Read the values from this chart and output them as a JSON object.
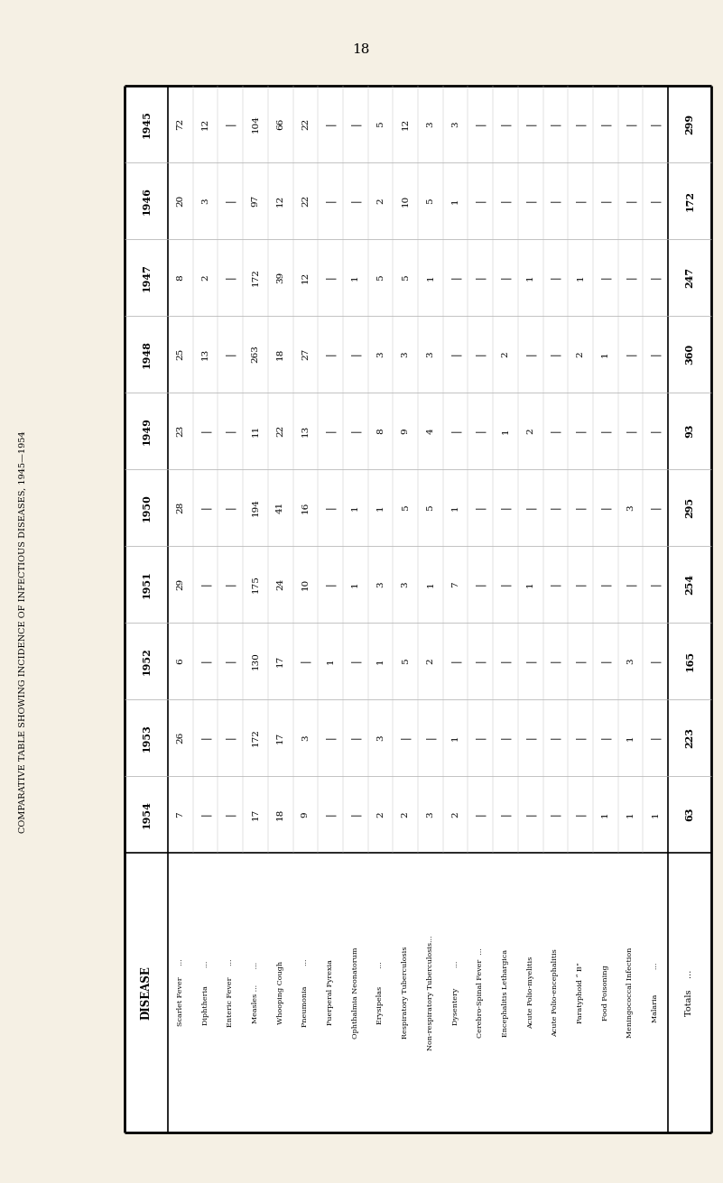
{
  "page_number": "18",
  "side_title": "COMPARATIVE TABLE SHOWING INCIDENCE OF INFECTIOUS DISEASES, 1945—1954",
  "bg_color": "#f5f0e4",
  "years_top_to_bottom": [
    "1945",
    "1946",
    "1947",
    "1948",
    "1949",
    "1950",
    "1951",
    "1952",
    "1953",
    "1954"
  ],
  "disease_names": [
    "Scarlet Fever     ...",
    "Diphtheria        ...",
    "Enteric Fever     ...",
    "Measles ...       ...",
    "Whooping Cough",
    "Pneumonia         ...",
    "Puerperal Pyrexia",
    "Ophthalmia Neonatorum",
    "Erysipelas        ...",
    "Respiratory Tuberculosis",
    "Non-respiratory Tuberculosis...",
    "Dysentery         ...",
    "Cerebro-Spinal Fever  ...",
    "Encephalitis Lethargica",
    "Acute Polio-myelitis",
    "Acute Polio-encephalitis",
    "Paratyphoid “ B”",
    "Food Poisoning",
    "Meningococcal Infection",
    "Malaria           ..."
  ],
  "data_by_year": {
    "1945": [
      72,
      12,
      null,
      104,
      66,
      22,
      null,
      null,
      5,
      12,
      3,
      3,
      null,
      null,
      null,
      null,
      null,
      null,
      null,
      null
    ],
    "1946": [
      20,
      3,
      null,
      97,
      12,
      22,
      null,
      null,
      2,
      10,
      5,
      1,
      null,
      null,
      null,
      null,
      null,
      null,
      null,
      null
    ],
    "1947": [
      8,
      2,
      null,
      172,
      39,
      12,
      null,
      1,
      5,
      5,
      1,
      null,
      null,
      null,
      1,
      null,
      1,
      null,
      null,
      null
    ],
    "1948": [
      25,
      13,
      null,
      263,
      18,
      27,
      null,
      null,
      3,
      3,
      3,
      null,
      null,
      2,
      null,
      null,
      2,
      1,
      null,
      null
    ],
    "1949": [
      23,
      null,
      null,
      11,
      22,
      13,
      null,
      null,
      8,
      9,
      4,
      null,
      null,
      1,
      2,
      null,
      null,
      null,
      null,
      null
    ],
    "1950": [
      28,
      null,
      null,
      194,
      41,
      16,
      null,
      1,
      1,
      5,
      5,
      1,
      null,
      null,
      null,
      null,
      null,
      null,
      3,
      null
    ],
    "1951": [
      29,
      null,
      null,
      175,
      24,
      10,
      null,
      1,
      3,
      3,
      1,
      7,
      null,
      null,
      1,
      null,
      null,
      null,
      null,
      null
    ],
    "1952": [
      6,
      null,
      null,
      130,
      17,
      null,
      1,
      null,
      1,
      5,
      2,
      null,
      null,
      null,
      null,
      null,
      null,
      null,
      3,
      null
    ],
    "1953": [
      26,
      null,
      null,
      172,
      17,
      3,
      null,
      null,
      3,
      null,
      null,
      1,
      null,
      null,
      null,
      null,
      null,
      null,
      1,
      null
    ],
    "1954": [
      7,
      null,
      null,
      17,
      18,
      9,
      null,
      null,
      2,
      2,
      3,
      2,
      null,
      null,
      null,
      null,
      null,
      1,
      1,
      1
    ]
  },
  "totals_by_year": {
    "1945": 299,
    "1946": 172,
    "1947": 247,
    "1948": 360,
    "1949": 93,
    "1950": 295,
    "1951": 254,
    "1952": 165,
    "1953": 223,
    "1954": 63
  }
}
